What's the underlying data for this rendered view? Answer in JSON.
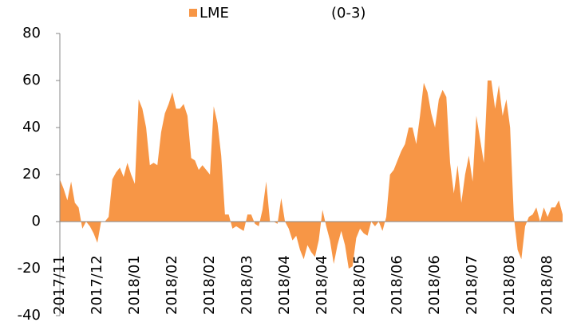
{
  "chart_data": {
    "type": "area",
    "categories": [
      "2017/11",
      null,
      null,
      null,
      null,
      null,
      null,
      null,
      null,
      null,
      "2017/12",
      null,
      null,
      null,
      null,
      null,
      null,
      null,
      null,
      null,
      "2018/01",
      null,
      null,
      null,
      null,
      null,
      null,
      null,
      null,
      null,
      "2018/02",
      null,
      null,
      null,
      null,
      null,
      null,
      null,
      null,
      null,
      "2018/02",
      null,
      null,
      null,
      null,
      null,
      null,
      null,
      null,
      null,
      "2018/03",
      null,
      null,
      null,
      null,
      null,
      null,
      null,
      null,
      null,
      "2018/04",
      null,
      null,
      null,
      null,
      null,
      null,
      null,
      null,
      null,
      "2018/04",
      null,
      null,
      null,
      null,
      null,
      null,
      null,
      null,
      null,
      "2018/05",
      null,
      null,
      null,
      null,
      null,
      null,
      null,
      null,
      null,
      "2018/06",
      null,
      null,
      null,
      null,
      null,
      null,
      null,
      null,
      null,
      "2018/06",
      null,
      null,
      null,
      null,
      null,
      null,
      null,
      null,
      null,
      "2018/07",
      null,
      null,
      null,
      null,
      null,
      null,
      null,
      null,
      null,
      "2018/08",
      null,
      null,
      null,
      null,
      null,
      null,
      null,
      null,
      null,
      "2018/08",
      null,
      null,
      null,
      null
    ],
    "series": [
      {
        "name": "LME",
        "color": "#f79646",
        "values": [
          18,
          14,
          9,
          17,
          8,
          6,
          -3,
          0,
          -2,
          -5,
          -9,
          0,
          0,
          2,
          18,
          21,
          23,
          19,
          25,
          20,
          16,
          52,
          48,
          40,
          24,
          25,
          24,
          38,
          46,
          50,
          55,
          48,
          48,
          50,
          45,
          27,
          26,
          22,
          24,
          22,
          20,
          49,
          42,
          28,
          3,
          3,
          -3,
          -2,
          -3,
          -4,
          3,
          3,
          -1,
          -2,
          5,
          17,
          0,
          0,
          -1,
          10,
          0,
          -3,
          -8,
          -6,
          -12,
          -16,
          -10,
          -13,
          -15,
          -8,
          5,
          -2,
          -8,
          -18,
          -10,
          -4,
          -10,
          -20,
          -19,
          -7,
          -3,
          -5,
          -6,
          0,
          -2,
          0,
          -4,
          2,
          20,
          22,
          26,
          30,
          33,
          40,
          40,
          33,
          45,
          59,
          55,
          46,
          40,
          52,
          56,
          53,
          25,
          12,
          24,
          8,
          20,
          28,
          17,
          45,
          35,
          25,
          60,
          60,
          48,
          58,
          45,
          52,
          40,
          2,
          -12,
          -16,
          -2,
          2,
          3,
          6,
          0,
          6,
          2,
          6,
          6,
          9,
          3
        ]
      }
    ],
    "legend_suffix": "(0-3)",
    "ylim": [
      -40,
      80
    ],
    "yticks": [
      -40,
      -20,
      0,
      20,
      40,
      60,
      80
    ]
  }
}
